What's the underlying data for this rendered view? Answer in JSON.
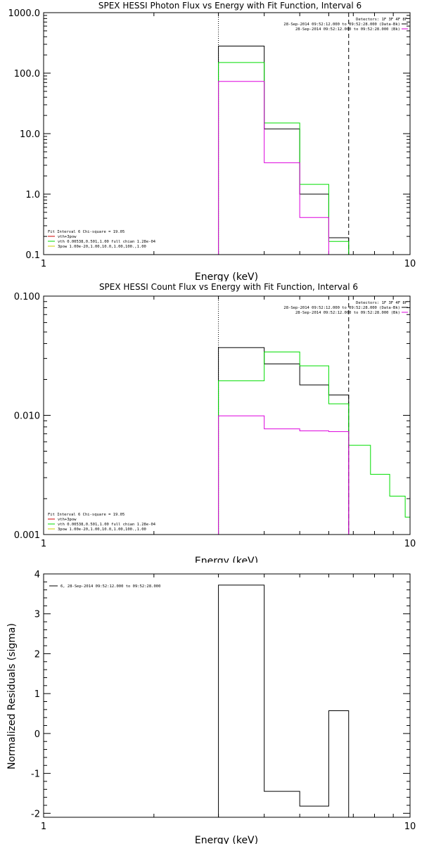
{
  "colors": {
    "black": "#000000",
    "green": "#00dd00",
    "magenta": "#dd00dd",
    "red": "#cc0000",
    "yellow": "#cccc00"
  },
  "chart_data": [
    {
      "type": "line",
      "title": "SPEX HESSI Photon Flux vs Energy with Fit Function, Interval 6",
      "xlabel": "Energy (keV)",
      "ylabel": "",
      "xscale": "log",
      "yscale": "log",
      "xlim": [
        1,
        10
      ],
      "ylim": [
        0.1,
        1000
      ],
      "xticks": [
        "1",
        "10"
      ],
      "yticks": [
        "0.1",
        "1.0",
        "10.0",
        "100.0",
        "1000.0"
      ],
      "vlines": [
        {
          "x": 3.0,
          "style": "dotted"
        },
        {
          "x": 6.8,
          "style": "dashed"
        }
      ],
      "legend_top_right": [
        "Detectors: 1F 3F 4F 8F",
        "28-Sep-2014 09:52:12.000 to 09:52:28.000 (Data-Bk)",
        "28-Sep-2014 09:52:12.000 to 09:52:28.000 (Bk)"
      ],
      "legend_bottom_left": [
        "Fit Interval  6   Chi-square = 19.05",
        "vth+3pow",
        "vth 0.00538,0.501,1.00   full chian 1.28e-04",
        "3pow 1.00e-20,1.00,10.0,1.00,100.,1.00"
      ],
      "edges": [
        3.0,
        4.0,
        5.0,
        6.0,
        6.8
      ],
      "series": [
        {
          "color": "black",
          "values": [
            280,
            12,
            1.0,
            0.19
          ]
        },
        {
          "color": "green",
          "values": [
            150,
            15,
            1.45,
            0.165
          ]
        },
        {
          "color": "magenta",
          "values": [
            73,
            3.3,
            0.41,
            0.095
          ]
        }
      ]
    },
    {
      "type": "line",
      "title": "SPEX HESSI Count Flux vs Energy with Fit Function, Interval 6",
      "xlabel": "Energy (keV)",
      "ylabel": "",
      "xscale": "log",
      "yscale": "log",
      "xlim": [
        1,
        10
      ],
      "ylim": [
        0.001,
        0.1
      ],
      "xticks": [
        "1",
        "10"
      ],
      "yticks": [
        "0.001",
        "0.010",
        "0.100"
      ],
      "vlines": [
        {
          "x": 3.0,
          "style": "dotted"
        },
        {
          "x": 6.8,
          "style": "dashed"
        }
      ],
      "legend_top_right": [
        "Detectors: 1F 3F 4F 8F",
        "28-Sep-2014 09:52:12.000 to 09:52:28.000 (Data-Bk)",
        "28-Sep-2014 09:52:12.000 to 09:52:28.000 (Bk)"
      ],
      "legend_bottom_left": [
        "Fit Interval  6   Chi-square = 19.05",
        "vth+3pow",
        "vth 0.00538,0.501,1.00   full chian 1.28e-04",
        "3pow 1.00e-20,1.00,10.0,1.00,100.,1.00"
      ],
      "series": [
        {
          "color": "black",
          "edges": [
            3.0,
            4.0,
            5.0,
            6.0,
            6.8
          ],
          "values": [
            0.037,
            0.027,
            0.018,
            0.0148
          ]
        },
        {
          "color": "green",
          "edges": [
            3.0,
            4.0,
            5.0,
            6.0,
            6.8,
            7.8,
            8.8,
            9.7,
            10.0
          ],
          "values": [
            0.0195,
            0.034,
            0.026,
            0.0125,
            0.0056,
            0.0032,
            0.0021,
            0.0014
          ]
        },
        {
          "color": "magenta",
          "edges": [
            3.0,
            4.0,
            5.0,
            6.0,
            6.8
          ],
          "values": [
            0.0099,
            0.0077,
            0.0074,
            0.0073
          ]
        }
      ]
    },
    {
      "type": "line",
      "title": "",
      "xlabel": "Energy (keV)",
      "ylabel": "Normalized Residuals (sigma)",
      "xscale": "log",
      "xlim": [
        1,
        10
      ],
      "ylim": [
        -2.1,
        4.0
      ],
      "xticks": [
        "1",
        "10"
      ],
      "yticks": [
        "-2",
        "-1",
        "0",
        "1",
        "2",
        "3",
        "4"
      ],
      "legend_top_left": "6, 28-Sep-2014 09:52:12.000 to 09:52:28.000",
      "edges": [
        3.0,
        4.0,
        5.0,
        6.0,
        6.8
      ],
      "series": [
        {
          "color": "black",
          "values": [
            3.72,
            -1.45,
            -1.82,
            0.57
          ]
        }
      ]
    }
  ]
}
